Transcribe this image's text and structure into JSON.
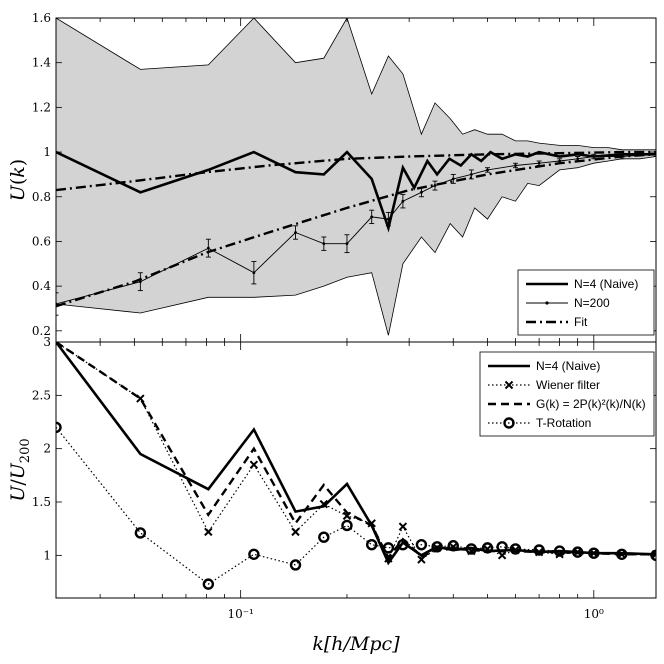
{
  "chart_data": [
    {
      "type": "line",
      "panel": "top",
      "xscale": "log",
      "xlim": [
        0.03,
        1.5
      ],
      "ylim": [
        0.15,
        1.6
      ],
      "ylabel": "U(k)",
      "yticks": [
        "0.2",
        "0.4",
        "0.6",
        "0.8",
        "1",
        "1.2",
        "1.4",
        "1.6"
      ],
      "legend_position": "bottom-right",
      "band": {
        "x": [
          0.03,
          0.052,
          0.081,
          0.109,
          0.143,
          0.172,
          0.2,
          0.235,
          0.262,
          0.288,
          0.325,
          0.355,
          0.392,
          0.425,
          0.46,
          0.5,
          0.55,
          0.6,
          0.65,
          0.7,
          0.8,
          0.9,
          1.0,
          1.1,
          1.2,
          1.35,
          1.5
        ],
        "upper": [
          1.6,
          1.37,
          1.39,
          1.6,
          1.4,
          1.42,
          1.6,
          1.26,
          1.43,
          1.35,
          1.08,
          1.22,
          1.15,
          1.08,
          1.1,
          1.08,
          1.08,
          1.05,
          1.05,
          1.04,
          1.03,
          1.03,
          1.02,
          1.02,
          1.01,
          1.01,
          1.01
        ],
        "lower": [
          0.32,
          0.28,
          0.35,
          0.35,
          0.36,
          0.4,
          0.44,
          0.46,
          0.18,
          0.5,
          0.62,
          0.55,
          0.68,
          0.62,
          0.75,
          0.7,
          0.8,
          0.78,
          0.86,
          0.85,
          0.92,
          0.93,
          0.95,
          0.96,
          0.97,
          0.97,
          0.98
        ]
      },
      "series": [
        {
          "name": "N=4 (Naive)",
          "style": "thick-solid",
          "x": [
            0.03,
            0.052,
            0.081,
            0.109,
            0.143,
            0.172,
            0.2,
            0.235,
            0.262,
            0.288,
            0.31,
            0.338,
            0.36,
            0.39,
            0.42,
            0.45,
            0.48,
            0.51,
            0.55,
            0.6,
            0.65,
            0.7,
            0.8,
            0.9,
            1.0,
            1.2,
            1.5
          ],
          "y": [
            1.0,
            0.82,
            0.92,
            1.0,
            0.91,
            0.9,
            1.0,
            0.88,
            0.66,
            0.93,
            0.84,
            0.96,
            0.9,
            0.97,
            0.94,
            0.99,
            0.96,
            1.0,
            0.97,
            0.99,
            0.98,
            1.0,
            0.98,
            0.99,
            0.98,
            0.99,
            0.99
          ]
        },
        {
          "name": "N=200",
          "style": "thin-solid-errorbars",
          "x": [
            0.03,
            0.052,
            0.081,
            0.109,
            0.143,
            0.172,
            0.2,
            0.235,
            0.262,
            0.288,
            0.325,
            0.355,
            0.4,
            0.45,
            0.5,
            0.6,
            0.7,
            0.8,
            0.9,
            1.0,
            1.2,
            1.5
          ],
          "y": [
            0.32,
            0.42,
            0.57,
            0.46,
            0.64,
            0.59,
            0.59,
            0.71,
            0.7,
            0.78,
            0.82,
            0.85,
            0.88,
            0.9,
            0.92,
            0.94,
            0.95,
            0.96,
            0.97,
            0.98,
            0.98,
            0.99
          ],
          "err": [
            0.05,
            0.04,
            0.04,
            0.05,
            0.03,
            0.03,
            0.04,
            0.03,
            0.03,
            0.03,
            0.02,
            0.02,
            0.02,
            0.02,
            0.01,
            0.01,
            0.01,
            0.01,
            0.01,
            0.01,
            0.01,
            0.01
          ]
        },
        {
          "name": "Fit",
          "style": "dash-dot",
          "group": "fit-upper",
          "x": [
            0.03,
            0.05,
            0.08,
            0.12,
            0.2,
            0.3,
            0.5,
            0.8,
            1.2,
            1.5
          ],
          "y": [
            0.83,
            0.87,
            0.91,
            0.94,
            0.97,
            0.98,
            0.99,
            0.995,
            1.0,
            1.0
          ]
        },
        {
          "name": "Fit",
          "style": "dash-dot",
          "group": "fit-lower",
          "x": [
            0.03,
            0.05,
            0.08,
            0.12,
            0.2,
            0.3,
            0.5,
            0.8,
            1.2,
            1.5
          ],
          "y": [
            0.31,
            0.42,
            0.55,
            0.64,
            0.75,
            0.83,
            0.9,
            0.95,
            0.98,
            0.99
          ]
        }
      ],
      "legend": [
        "N=4 (Naive)",
        "N=200",
        "Fit"
      ]
    },
    {
      "type": "line",
      "panel": "bottom",
      "xscale": "log",
      "xlim": [
        0.03,
        1.5
      ],
      "ylim": [
        0.6,
        3.0
      ],
      "ylabel": "U/U200",
      "yticks": [
        "1",
        "1.5",
        "2",
        "2.5",
        "3"
      ],
      "xticks": [
        "10⁻¹",
        "10⁰"
      ],
      "xlabel": "k[h/Mpc]",
      "legend_position": "top-right",
      "series": [
        {
          "name": "N=4 (Naive)",
          "style": "thick-solid",
          "x": [
            0.03,
            0.052,
            0.081,
            0.109,
            0.143,
            0.172,
            0.2,
            0.235,
            0.262,
            0.288,
            0.325,
            0.36,
            0.4,
            0.45,
            0.5,
            0.6,
            0.7,
            0.8,
            0.9,
            1.0,
            1.2,
            1.5
          ],
          "y": [
            3.0,
            1.95,
            1.62,
            2.18,
            1.41,
            1.46,
            1.67,
            1.28,
            0.93,
            1.12,
            1.0,
            1.08,
            1.05,
            1.07,
            1.04,
            1.05,
            1.03,
            1.04,
            1.03,
            1.02,
            1.02,
            1.01
          ]
        },
        {
          "name": "Wiener filter",
          "style": "dotted-x",
          "x": [
            0.03,
            0.052,
            0.081,
            0.109,
            0.143,
            0.172,
            0.2,
            0.235,
            0.262,
            0.288,
            0.325,
            0.36,
            0.4,
            0.45,
            0.5,
            0.55,
            0.6,
            0.7,
            0.8,
            0.9,
            1.0,
            1.2,
            1.5
          ],
          "y": [
            3.0,
            2.47,
            1.22,
            1.85,
            1.22,
            1.48,
            1.37,
            1.3,
            0.97,
            1.27,
            0.96,
            1.07,
            1.08,
            1.04,
            1.06,
            1.0,
            1.05,
            1.03,
            1.01,
            1.03,
            1.02,
            1.01,
            1.01
          ]
        },
        {
          "name": "G(k) = 2P(k)²(k)/N(k)",
          "style": "dashed",
          "x": [
            0.03,
            0.052,
            0.081,
            0.109,
            0.143,
            0.172,
            0.2,
            0.235,
            0.262,
            0.288,
            0.325,
            0.36,
            0.4,
            0.45,
            0.5,
            0.6,
            0.7,
            0.8,
            0.9,
            1.0,
            1.2,
            1.5
          ],
          "y": [
            3.0,
            2.47,
            1.38,
            2.0,
            1.3,
            1.66,
            1.4,
            1.28,
            0.98,
            1.15,
            0.99,
            1.05,
            1.06,
            1.05,
            1.04,
            1.04,
            1.03,
            1.03,
            1.02,
            1.02,
            1.01,
            1.01
          ]
        },
        {
          "name": "T-Rotation",
          "style": "dotted-o",
          "x": [
            0.03,
            0.052,
            0.081,
            0.109,
            0.143,
            0.172,
            0.2,
            0.235,
            0.262,
            0.288,
            0.325,
            0.36,
            0.4,
            0.45,
            0.5,
            0.55,
            0.6,
            0.7,
            0.8,
            0.9,
            1.0,
            1.2,
            1.5
          ],
          "y": [
            2.2,
            1.21,
            0.73,
            1.01,
            0.91,
            1.17,
            1.28,
            1.1,
            1.07,
            1.1,
            1.1,
            1.08,
            1.09,
            1.06,
            1.07,
            1.08,
            1.06,
            1.05,
            1.04,
            1.03,
            1.02,
            1.01,
            1.0
          ]
        }
      ],
      "legend": [
        "N=4 (Naive)",
        "Wiener filter",
        "G(k) = 2P(k)²(k)/N(k)",
        "T-Rotation"
      ]
    }
  ]
}
